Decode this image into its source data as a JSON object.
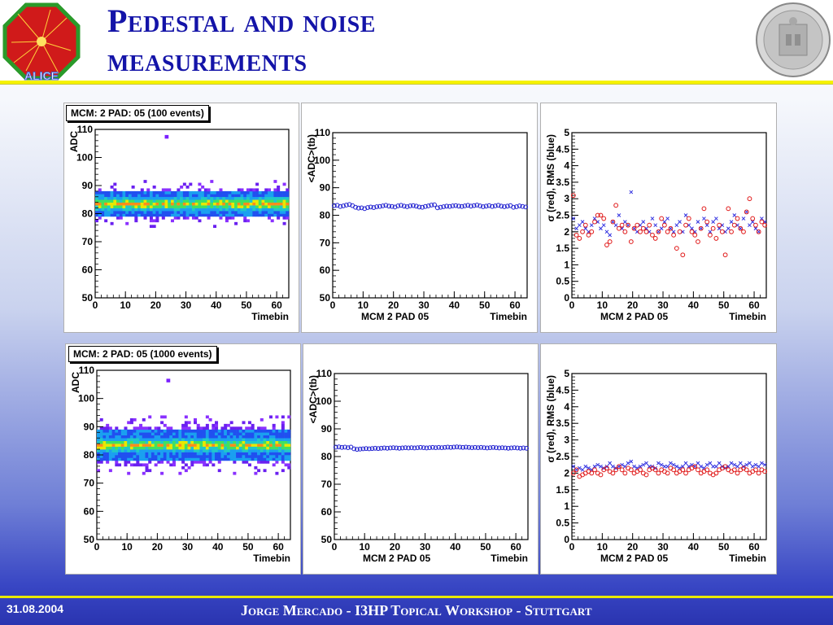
{
  "slide": {
    "title_line1": "Pedestal and noise",
    "title_line2": "measurements",
    "logo_text": "ALICE",
    "footer_date": "31.08.2004",
    "footer_text": "Jorge Mercado - I3HP Topical Workshop - Stuttgart"
  },
  "colors": {
    "title": "#1414a8",
    "accent_rule": "#f5f200",
    "footer_bg": "#2a34b0"
  },
  "icons": {
    "left_logo": "alice-logo-icon",
    "right_logo": "university-seal-icon"
  },
  "chart_data": [
    {
      "type": "heatmap",
      "title": "MCM: 2 PAD: 05 (100 events)",
      "xlabel": "Timebin",
      "ylabel": "ADC",
      "xlim": [
        0,
        64
      ],
      "ylim": [
        50,
        110
      ],
      "xticks": [
        0,
        10,
        20,
        30,
        40,
        50,
        60
      ],
      "yticks": [
        50,
        60,
        70,
        80,
        90,
        100,
        110
      ],
      "x_tick_labels": [
        "0",
        "10",
        "20",
        "30",
        "40",
        "50",
        "60"
      ],
      "y_tick_labels": [
        "50",
        "60",
        "70",
        "80",
        "90",
        "100",
        "110"
      ],
      "band_center": 83,
      "band_halfwidth": 4,
      "band_tails": [
        75,
        91
      ],
      "outliers": [
        {
          "x": 23,
          "y": 107
        }
      ]
    },
    {
      "type": "scatter",
      "xlabel": "Timebin",
      "xlabel2": "MCM 2 PAD 05",
      "ylabel": "<ADC>(tb)",
      "xlim": [
        0,
        64
      ],
      "ylim": [
        50,
        110
      ],
      "xticks": [
        0,
        10,
        20,
        30,
        40,
        50,
        60
      ],
      "yticks": [
        50,
        60,
        70,
        80,
        90,
        100,
        110
      ],
      "x_tick_labels": [
        "0",
        "10",
        "20",
        "30",
        "40",
        "50",
        "60"
      ],
      "y_tick_labels": [
        "50",
        "60",
        "70",
        "80",
        "90",
        "100",
        "110"
      ],
      "series": [
        {
          "values": [
            83.5,
            83.6,
            83.2,
            83.4,
            83.7,
            83.9,
            83.5,
            82.9,
            82.6,
            82.7,
            82.4,
            82.8,
            83.0,
            82.8,
            83.1,
            83.2,
            83.4,
            83.6,
            83.3,
            83.2,
            83.0,
            83.4,
            83.6,
            83.3,
            83.1,
            83.4,
            83.5,
            83.3,
            83.0,
            82.9,
            83.2,
            83.4,
            83.7,
            83.8,
            82.7,
            82.9,
            83.1,
            83.3,
            83.2,
            83.4,
            83.5,
            83.3,
            83.2,
            83.4,
            83.6,
            83.3,
            83.5,
            83.7,
            83.4,
            83.1,
            83.3,
            83.5,
            83.2,
            83.4,
            83.6,
            83.3,
            83.1,
            83.3,
            83.5,
            82.9,
            83.1,
            83.4,
            83.2,
            83.0
          ]
        }
      ]
    },
    {
      "type": "scatter",
      "xlabel": "Timebin",
      "xlabel2": "MCM 2 PAD 05",
      "ylabel": "σ (red), RMS (blue)",
      "xlim": [
        0,
        64
      ],
      "ylim": [
        0,
        5
      ],
      "xticks": [
        0,
        10,
        20,
        30,
        40,
        50,
        60
      ],
      "yticks": [
        0,
        0.5,
        1,
        1.5,
        2,
        2.5,
        3,
        3.5,
        4,
        4.5,
        5
      ],
      "x_tick_labels": [
        "0",
        "10",
        "20",
        "30",
        "40",
        "50",
        "60"
      ],
      "y_tick_labels": [
        "0",
        "0.5",
        "1",
        "1.5",
        "2",
        "2.5",
        "3",
        "3.5",
        "4",
        "4.5",
        "5"
      ],
      "series": [
        {
          "name": "σ (red)",
          "values": [
            3.1,
            1.9,
            1.8,
            2.0,
            2.2,
            1.9,
            2.0,
            2.3,
            2.5,
            2.5,
            2.4,
            1.6,
            1.7,
            2.3,
            2.8,
            2.1,
            2.2,
            2.0,
            2.2,
            1.7,
            2.1,
            2.2,
            2.0,
            2.1,
            2.0,
            2.2,
            1.9,
            1.8,
            2.0,
            2.4,
            2.2,
            2.0,
            2.1,
            1.9,
            1.5,
            2.0,
            1.3,
            2.2,
            2.4,
            2.0,
            1.9,
            1.7,
            2.1,
            2.7,
            2.3,
            1.9,
            2.1,
            1.8,
            2.2,
            2.0,
            1.3,
            2.7,
            2.0,
            2.2,
            2.4,
            2.1,
            2.0,
            2.6,
            3.0,
            2.4,
            2.2,
            2.0,
            2.3,
            2.2
          ]
        },
        {
          "name": "RMS (blue)",
          "values": [
            2.4,
            2.1,
            2.2,
            2.3,
            2.1,
            2.0,
            2.2,
            2.4,
            2.3,
            2.1,
            2.2,
            2.0,
            1.9,
            2.3,
            2.2,
            2.5,
            2.1,
            2.3,
            2.2,
            3.2,
            2.1,
            2.0,
            2.2,
            2.3,
            2.1,
            2.0,
            2.4,
            2.2,
            2.0,
            2.1,
            2.3,
            2.4,
            2.1,
            2.0,
            2.2,
            2.3,
            2.0,
            2.5,
            2.2,
            2.1,
            2.0,
            2.3,
            2.1,
            2.4,
            2.2,
            2.0,
            2.3,
            2.4,
            2.1,
            2.2,
            2.0,
            2.1,
            2.3,
            2.5,
            2.2,
            2.1,
            2.4,
            2.6,
            2.2,
            2.3,
            2.1,
            2.0,
            2.4,
            2.3
          ]
        }
      ]
    },
    {
      "type": "heatmap",
      "title": "MCM: 2 PAD: 05 (1000 events)",
      "xlabel": "Timebin",
      "ylabel": "ADC",
      "xlim": [
        0,
        64
      ],
      "ylim": [
        50,
        110
      ],
      "xticks": [
        0,
        10,
        20,
        30,
        40,
        50,
        60
      ],
      "yticks": [
        50,
        60,
        70,
        80,
        90,
        100,
        110
      ],
      "x_tick_labels": [
        "0",
        "10",
        "20",
        "30",
        "40",
        "50",
        "60"
      ],
      "y_tick_labels": [
        "50",
        "60",
        "70",
        "80",
        "90",
        "100",
        "110"
      ],
      "band_center": 83,
      "band_halfwidth": 5,
      "band_tails": [
        73,
        93
      ],
      "outliers": [
        {
          "x": 23,
          "y": 106
        }
      ]
    },
    {
      "type": "scatter",
      "xlabel": "Timebin",
      "xlabel2": "MCM 2 PAD 05",
      "ylabel": "<ADC>(tb)",
      "xlim": [
        0,
        64
      ],
      "ylim": [
        50,
        110
      ],
      "xticks": [
        0,
        10,
        20,
        30,
        40,
        50,
        60
      ],
      "yticks": [
        50,
        60,
        70,
        80,
        90,
        100,
        110
      ],
      "x_tick_labels": [
        "0",
        "10",
        "20",
        "30",
        "40",
        "50",
        "60"
      ],
      "y_tick_labels": [
        "50",
        "60",
        "70",
        "80",
        "90",
        "100",
        "110"
      ],
      "series": [
        {
          "values": [
            83.4,
            83.5,
            83.3,
            83.4,
            83.2,
            83.4,
            82.8,
            82.6,
            82.7,
            82.8,
            82.9,
            82.8,
            82.9,
            83.0,
            82.9,
            83.0,
            83.1,
            83.0,
            83.1,
            83.2,
            83.1,
            83.0,
            83.1,
            83.2,
            83.1,
            83.2,
            83.1,
            83.2,
            83.3,
            83.2,
            83.1,
            83.2,
            83.3,
            83.2,
            83.3,
            83.2,
            83.3,
            83.4,
            83.3,
            83.4,
            83.5,
            83.4,
            83.3,
            83.4,
            83.3,
            83.2,
            83.3,
            83.2,
            83.3,
            83.2,
            83.1,
            83.2,
            83.3,
            83.2,
            83.1,
            83.2,
            83.1,
            83.0,
            83.1,
            83.2,
            83.1,
            83.0,
            83.1,
            83.0
          ]
        }
      ]
    },
    {
      "type": "scatter",
      "xlabel": "Timebin",
      "xlabel2": "MCM 2 PAD 05",
      "ylabel": "σ (red), RMS (blue)",
      "xlim": [
        0,
        64
      ],
      "ylim": [
        0,
        5
      ],
      "xticks": [
        0,
        10,
        20,
        30,
        40,
        50,
        60
      ],
      "yticks": [
        0,
        0.5,
        1,
        1.5,
        2,
        2.5,
        3,
        3.5,
        4,
        4.5,
        5
      ],
      "x_tick_labels": [
        "0",
        "10",
        "20",
        "30",
        "40",
        "50",
        "60"
      ],
      "y_tick_labels": [
        "0",
        "0.5",
        "1",
        "1.5",
        "2",
        "2.5",
        "3",
        "3.5",
        "4",
        "4.5",
        "5"
      ],
      "series": [
        {
          "name": "σ (red)",
          "values": [
            2.0,
            2.1,
            1.9,
            1.95,
            2.0,
            2.05,
            2.0,
            2.1,
            2.0,
            1.95,
            2.1,
            2.15,
            2.05,
            2.0,
            2.1,
            2.2,
            2.1,
            2.0,
            2.15,
            2.1,
            2.0,
            2.05,
            2.1,
            2.0,
            1.95,
            2.1,
            2.15,
            2.1,
            2.0,
            2.1,
            2.05,
            2.0,
            2.15,
            2.1,
            2.0,
            2.05,
            2.1,
            2.0,
            2.1,
            2.15,
            2.2,
            2.1,
            2.0,
            2.05,
            2.1,
            2.0,
            1.95,
            2.0,
            2.1,
            2.15,
            2.2,
            2.1,
            2.05,
            2.1,
            2.0,
            2.1,
            2.15,
            2.1,
            2.0,
            2.05,
            2.1,
            2.0,
            2.1,
            2.05
          ]
        },
        {
          "name": "RMS (blue)",
          "values": [
            2.2,
            2.1,
            2.15,
            2.1,
            2.2,
            2.15,
            2.1,
            2.2,
            2.25,
            2.2,
            2.15,
            2.2,
            2.3,
            2.2,
            2.15,
            2.2,
            2.25,
            2.2,
            2.3,
            2.35,
            2.2,
            2.15,
            2.2,
            2.25,
            2.3,
            2.2,
            2.2,
            2.15,
            2.3,
            2.25,
            2.2,
            2.2,
            2.3,
            2.25,
            2.2,
            2.15,
            2.2,
            2.3,
            2.2,
            2.25,
            2.2,
            2.3,
            2.2,
            2.15,
            2.25,
            2.3,
            2.2,
            2.2,
            2.3,
            2.2,
            2.15,
            2.2,
            2.3,
            2.25,
            2.2,
            2.3,
            2.2,
            2.25,
            2.3,
            2.2,
            2.25,
            2.2,
            2.3,
            2.25
          ]
        }
      ]
    }
  ]
}
